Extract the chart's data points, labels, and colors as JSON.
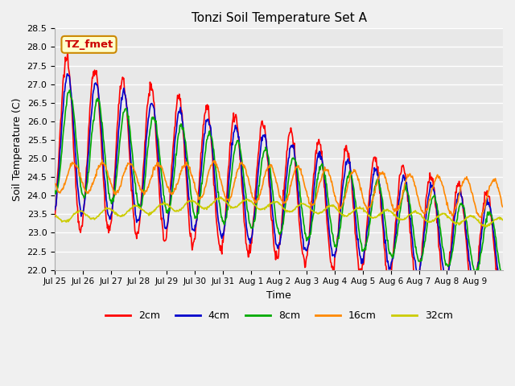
{
  "title": "Tonzi Soil Temperature Set A",
  "xlabel": "Time",
  "ylabel": "Soil Temperature (C)",
  "ylim": [
    22.0,
    28.5
  ],
  "yticks": [
    22.0,
    22.5,
    23.0,
    23.5,
    24.0,
    24.5,
    25.0,
    25.5,
    26.0,
    26.5,
    27.0,
    27.5,
    28.0,
    28.5
  ],
  "x_labels": [
    "Jul 25",
    "Jul 26",
    "Jul 27",
    "Jul 28",
    "Jul 29",
    "Jul 30",
    "Jul 31",
    "Aug 1",
    "Aug 2",
    "Aug 3",
    "Aug 4",
    "Aug 5",
    "Aug 6",
    "Aug 7",
    "Aug 8",
    "Aug 9"
  ],
  "series": {
    "2cm": {
      "color": "#ff0000",
      "linewidth": 1.2
    },
    "4cm": {
      "color": "#0000cc",
      "linewidth": 1.2
    },
    "8cm": {
      "color": "#00aa00",
      "linewidth": 1.2
    },
    "16cm": {
      "color": "#ff8800",
      "linewidth": 1.2
    },
    "32cm": {
      "color": "#cccc00",
      "linewidth": 1.2
    }
  },
  "annotation_text": "TZ_fmet",
  "annotation_color": "#cc0000",
  "annotation_bg": "#ffffcc",
  "annotation_border": "#cc8800",
  "fig_bg": "#f0f0f0",
  "plot_bg": "#e8e8e8",
  "grid_color": "#ffffff",
  "n_days": 16
}
